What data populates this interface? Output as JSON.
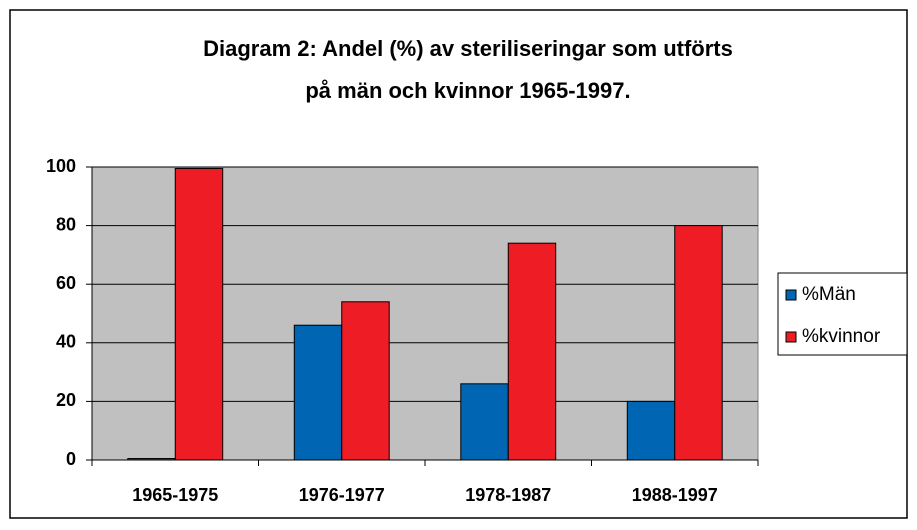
{
  "chart_data": {
    "type": "bar",
    "title": [
      "Diagram 2: Andel (%)  av steriliseringar som utförts",
      "på män och kvinnor 1965-1997."
    ],
    "categories": [
      "1965-1975",
      "1976-1977",
      "1978-1987",
      "1988-1997"
    ],
    "series": [
      {
        "name": "%Män",
        "color": "#0066b3",
        "values": [
          0.5,
          46,
          26,
          20
        ]
      },
      {
        "name": "%kvinnor",
        "color": "#ee1c25",
        "values": [
          99.5,
          54,
          74,
          80
        ]
      }
    ],
    "ylim": [
      0,
      100
    ],
    "yticks": [
      0,
      20,
      40,
      60,
      80,
      100
    ],
    "grid": true,
    "legend": "right"
  }
}
